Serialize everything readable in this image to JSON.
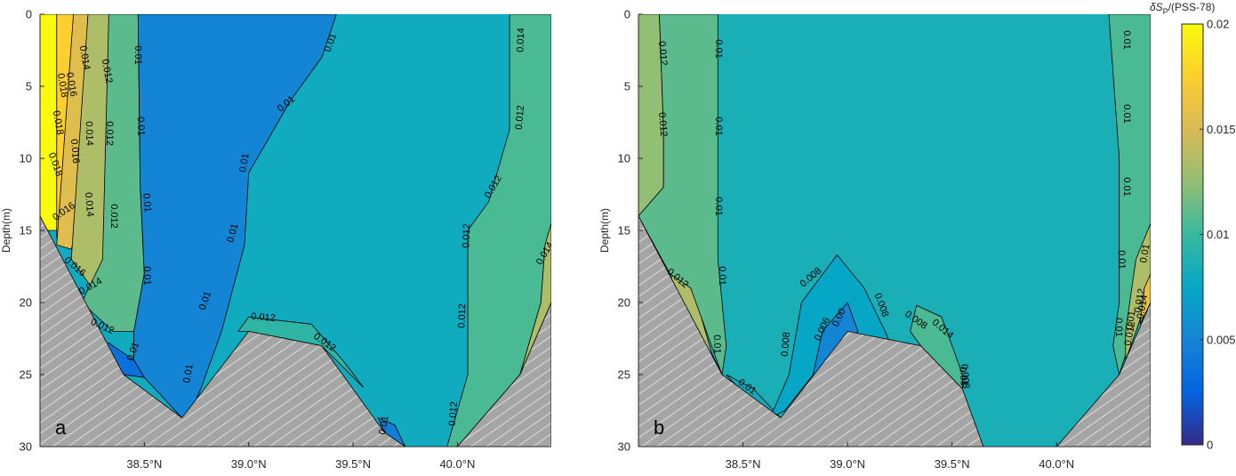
{
  "chart_data": [
    {
      "type": "heatmap",
      "panel_label": "a",
      "ylabel": "Depth(m)",
      "x_ticks": [
        "38.5°N",
        "39.0°N",
        "39.5°N",
        "40.0°N"
      ],
      "x_tick_values": [
        38.5,
        39.0,
        39.5,
        40.0
      ],
      "y_ticks": [
        "0",
        "5",
        "10",
        "15",
        "20",
        "25",
        "30"
      ],
      "y_tick_values": [
        0,
        5,
        10,
        15,
        20,
        25,
        30
      ],
      "xlim": [
        38.0,
        40.45
      ],
      "ylim": [
        0,
        30
      ],
      "y_reversed": true,
      "bottom_profile": [
        {
          "lat": 38.0,
          "depth": 14.0
        },
        {
          "lat": 38.4,
          "depth": 25.0
        },
        {
          "lat": 38.68,
          "depth": 28.0
        },
        {
          "lat": 39.0,
          "depth": 22.0
        },
        {
          "lat": 39.35,
          "depth": 23.0
        },
        {
          "lat": 39.65,
          "depth": 29.0
        },
        {
          "lat": 39.75,
          "depth": 30.0
        },
        {
          "lat": 40.0,
          "depth": 30.0
        },
        {
          "lat": 40.3,
          "depth": 25.0
        },
        {
          "lat": 40.45,
          "depth": 20.0
        }
      ],
      "regions": [
        {
          "value": 0.02,
          "polygon": [
            [
              38.0,
              0
            ],
            [
              38.08,
              0
            ],
            [
              38.08,
              15.0
            ],
            [
              38.0,
              15.0
            ]
          ]
        },
        {
          "value": 0.0175,
          "polygon": [
            [
              38.08,
              0
            ],
            [
              38.16,
              0
            ],
            [
              38.14,
              8
            ],
            [
              38.14,
              15.0
            ],
            [
              38.1,
              15.5
            ],
            [
              38.08,
              15.5
            ]
          ]
        },
        {
          "value": 0.0155,
          "polygon": [
            [
              38.16,
              0
            ],
            [
              38.23,
              0
            ],
            [
              38.2,
              8
            ],
            [
              38.2,
              14
            ],
            [
              38.15,
              16.3
            ],
            [
              38.08,
              16
            ]
          ]
        },
        {
          "value": 0.0135,
          "polygon": [
            [
              38.23,
              0
            ],
            [
              38.33,
              0
            ],
            [
              38.35,
              8
            ],
            [
              38.35,
              15
            ],
            [
              38.25,
              19
            ],
            [
              38.15,
              17
            ]
          ]
        },
        {
          "value": 0.011,
          "polygon": [
            [
              38.33,
              0
            ],
            [
              38.47,
              0
            ],
            [
              38.48,
              12
            ],
            [
              38.5,
              18
            ],
            [
              38.45,
              22
            ],
            [
              38.35,
              22
            ],
            [
              38.2,
              20
            ],
            [
              38.3,
              17
            ]
          ]
        },
        {
          "value": 0.005,
          "polygon": [
            [
              38.47,
              0
            ],
            [
              39.42,
              0
            ],
            [
              39.35,
              3
            ],
            [
              39.2,
              6
            ],
            [
              39.0,
              11
            ],
            [
              38.98,
              16
            ],
            [
              38.87,
              22
            ],
            [
              38.77,
              26
            ],
            [
              38.72,
              27.7
            ],
            [
              38.68,
              28
            ],
            [
              38.5,
              25.2
            ],
            [
              38.45,
              24
            ],
            [
              38.45,
              22
            ],
            [
              38.5,
              18
            ],
            [
              38.48,
              12
            ]
          ]
        },
        {
          "value": 0.0035,
          "polygon": [
            [
              38.33,
              22.8
            ],
            [
              38.45,
              24
            ],
            [
              38.5,
              25.2
            ],
            [
              38.4,
              25
            ],
            [
              38.3,
              23
            ]
          ]
        },
        {
          "value": 0.0095,
          "polygon": [
            [
              38.95,
              22
            ],
            [
              39.0,
              21
            ],
            [
              39.3,
              21.5
            ],
            [
              39.45,
              24
            ],
            [
              39.55,
              25.9
            ],
            [
              39.35,
              23
            ],
            [
              39.0,
              22
            ]
          ]
        },
        {
          "value": 0.0045,
          "polygon": [
            [
              39.62,
              28
            ],
            [
              39.7,
              28.5
            ],
            [
              39.75,
              30
            ],
            [
              39.67,
              30
            ],
            [
              39.65,
              29
            ]
          ]
        },
        {
          "value": 0.0105,
          "polygon": [
            [
              40.25,
              0
            ],
            [
              40.45,
              0
            ],
            [
              40.45,
              14.5
            ],
            [
              40.42,
              16
            ],
            [
              40.4,
              20
            ],
            [
              40.3,
              25
            ],
            [
              40.0,
              30
            ],
            [
              39.95,
              30
            ],
            [
              40.05,
              25
            ],
            [
              40.05,
              15
            ],
            [
              40.15,
              13
            ],
            [
              40.25,
              8
            ]
          ]
        },
        {
          "value": 0.0135,
          "polygon": [
            [
              40.45,
              14.5
            ],
            [
              40.45,
              20
            ],
            [
              40.3,
              25
            ],
            [
              40.4,
              20
            ],
            [
              40.42,
              16
            ]
          ]
        }
      ],
      "background_value": 0.008,
      "contour_labels": [
        "0.018",
        "0.016",
        "0.014",
        "0.012",
        "0.01",
        "0.018",
        "0.016",
        "0.014",
        "0.012",
        "0.01",
        "0.018",
        "0.016",
        "0.014",
        "0.012",
        "0.01",
        "0.016",
        "0.014",
        "0.012",
        "0.01",
        "0.01",
        "0.01",
        "0.01",
        "0.01",
        "0.01",
        "0.01",
        "0.01",
        "0.012",
        "0.012",
        "0.01",
        "0.012",
        "0.012",
        "0.012",
        "0.012",
        "0.012",
        "0.014",
        "0.014"
      ]
    },
    {
      "type": "heatmap",
      "panel_label": "b",
      "ylabel": "Depth(m)",
      "x_ticks": [
        "38.5°N",
        "39.0°N",
        "39.5°N",
        "40.0°N"
      ],
      "x_tick_values": [
        38.5,
        39.0,
        39.5,
        40.0
      ],
      "y_ticks": [
        "0",
        "5",
        "10",
        "15",
        "20",
        "25",
        "30"
      ],
      "y_tick_values": [
        0,
        5,
        10,
        15,
        20,
        25,
        30
      ],
      "xlim": [
        38.0,
        40.45
      ],
      "ylim": [
        0,
        30
      ],
      "y_reversed": true,
      "bottom_profile": [
        {
          "lat": 38.0,
          "depth": 14.0
        },
        {
          "lat": 38.4,
          "depth": 25.0
        },
        {
          "lat": 38.68,
          "depth": 28.0
        },
        {
          "lat": 39.0,
          "depth": 22.0
        },
        {
          "lat": 39.35,
          "depth": 23.0
        },
        {
          "lat": 39.55,
          "depth": 26.0
        },
        {
          "lat": 39.65,
          "depth": 30.0
        },
        {
          "lat": 40.0,
          "depth": 30.0
        },
        {
          "lat": 40.3,
          "depth": 25.0
        },
        {
          "lat": 40.45,
          "depth": 20.0
        }
      ],
      "regions": [
        {
          "value": 0.0125,
          "polygon": [
            [
              38.0,
              0
            ],
            [
              38.1,
              0
            ],
            [
              38.12,
              8
            ],
            [
              38.12,
              12
            ],
            [
              38.0,
              14
            ]
          ]
        },
        {
          "value": 0.011,
          "polygon": [
            [
              38.1,
              0
            ],
            [
              38.38,
              0
            ],
            [
              38.38,
              10
            ],
            [
              38.38,
              17
            ],
            [
              38.42,
              23
            ],
            [
              38.4,
              25
            ],
            [
              38.3,
              21
            ],
            [
              38.15,
              18
            ],
            [
              38.0,
              14
            ],
            [
              38.12,
              12
            ],
            [
              38.12,
              8
            ]
          ]
        },
        {
          "value": 0.0135,
          "polygon": [
            [
              38.15,
              18
            ],
            [
              38.25,
              19
            ],
            [
              38.3,
              21
            ],
            [
              38.35,
              23.5
            ],
            [
              38.4,
              25
            ],
            [
              38.25,
              22
            ]
          ]
        },
        {
          "value": 0.008,
          "polygon": [
            [
              38.42,
              25
            ],
            [
              38.55,
              26
            ],
            [
              38.68,
              28
            ],
            [
              38.6,
              27.5
            ],
            [
              38.45,
              25.5
            ]
          ]
        },
        {
          "value": 0.0075,
          "polygon": [
            [
              38.63,
              28
            ],
            [
              38.72,
              25
            ],
            [
              38.78,
              20
            ],
            [
              38.95,
              16.7
            ],
            [
              39.08,
              19
            ],
            [
              39.18,
              22
            ],
            [
              39.2,
              22.7
            ],
            [
              39.0,
              22
            ],
            [
              38.7,
              27.5
            ]
          ]
        },
        {
          "value": 0.005,
          "polygon": [
            [
              38.82,
              26
            ],
            [
              38.88,
              22
            ],
            [
              39.0,
              20
            ],
            [
              39.05,
              22
            ],
            [
              38.95,
              23.5
            ]
          ]
        },
        {
          "value": 0.0105,
          "polygon": [
            [
              39.3,
              22
            ],
            [
              39.33,
              20.2
            ],
            [
              39.45,
              21
            ],
            [
              39.5,
              23
            ],
            [
              39.55,
              25
            ],
            [
              39.55,
              26
            ],
            [
              39.45,
              24.5
            ],
            [
              39.35,
              23
            ]
          ]
        },
        {
          "value": 0.0105,
          "polygon": [
            [
              40.25,
              0
            ],
            [
              40.45,
              0
            ],
            [
              40.45,
              14.5
            ],
            [
              40.43,
              19
            ],
            [
              40.4,
              20.5
            ],
            [
              40.3,
              25
            ],
            [
              40.27,
              23
            ],
            [
              40.3,
              20
            ],
            [
              40.3,
              10
            ]
          ]
        },
        {
          "value": 0.0135,
          "polygon": [
            [
              40.38,
              17
            ],
            [
              40.45,
              14.5
            ],
            [
              40.45,
              19
            ],
            [
              40.38,
              22
            ],
            [
              40.33,
              24
            ],
            [
              40.33,
              22
            ]
          ]
        },
        {
          "value": 0.016,
          "polygon": [
            [
              40.42,
              19
            ],
            [
              40.45,
              18
            ],
            [
              40.45,
              20
            ],
            [
              40.4,
              21.5
            ]
          ]
        }
      ],
      "background_value": 0.0085,
      "contour_labels": [
        "0.012",
        "0.012",
        "0.01",
        "0.01",
        "0.01",
        "0.01",
        "0.01",
        "0.012",
        "0.01",
        "0.008",
        "0.008",
        "0.006",
        "0.008",
        "0.008",
        "0.00",
        "0.008",
        "0.01",
        "0.01",
        "0.01",
        "0.01",
        "0.01",
        "0.01",
        "0.01",
        "0.012",
        "0.014",
        "0.012",
        "0.014",
        "0.01"
      ]
    }
  ],
  "colorbar": {
    "title_main": "δS",
    "title_sub": "P",
    "title_rest": "/(PSS-78)",
    "min": 0,
    "max": 0.02,
    "tick_values": [
      0,
      0.005,
      0.01,
      0.015,
      0.02
    ],
    "tick_labels": [
      "0",
      "0.005",
      "0.01",
      "0.015",
      "0.02"
    ],
    "colors": [
      "#352a87",
      "#0363e1",
      "#1485d4",
      "#06a7c6",
      "#38b99e",
      "#92bf73",
      "#d9ba56",
      "#fcce2e",
      "#f9fb0e"
    ]
  }
}
